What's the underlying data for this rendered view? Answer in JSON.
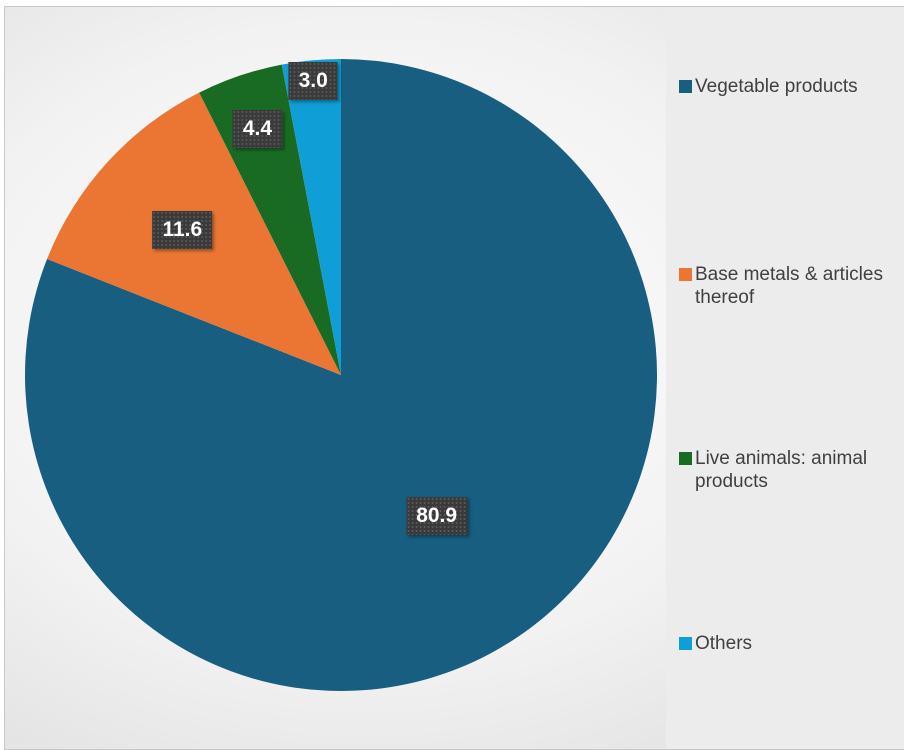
{
  "chart_data": {
    "type": "pie",
    "title": "",
    "categories": [
      "Vegetable products",
      "Base metals & articles thereof",
      "Live animals: animal products",
      "Others"
    ],
    "values": [
      80.9,
      11.6,
      4.4,
      3.0
    ],
    "data_labels": [
      "80.9",
      "11.6",
      "4.4",
      "3.0"
    ],
    "colors": [
      "#185E80",
      "#EB7634",
      "#196B24",
      "#0F9ED5"
    ],
    "legend_position": "right",
    "start_angle": "12 o'clock, clockwise"
  }
}
